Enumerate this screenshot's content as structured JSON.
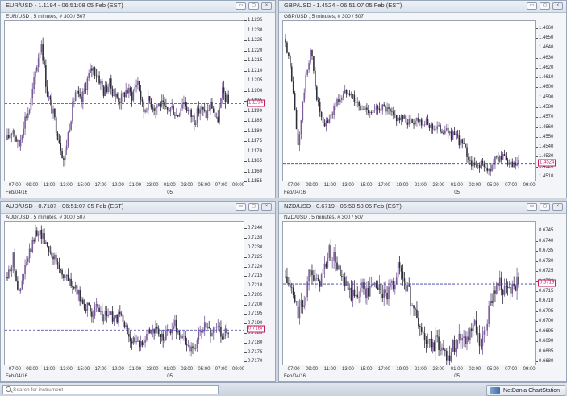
{
  "panels": [
    {
      "id": "eurusd",
      "title": "EUR/USD - 1.1194 - 06:51:08  05 Feb (EST)",
      "subtitle": "EUR/USD , 5 minutes, # 300 / 507",
      "last_price": "1.1194",
      "date_label": "Feb/04/16",
      "day_label": "05",
      "chart_data": {
        "type": "candlestick",
        "y_ticks": [
          "1.1235",
          "1.1230",
          "1.1225",
          "1.1220",
          "1.1215",
          "1.1210",
          "1.1205",
          "1.1200",
          "1.1195",
          "1.1190",
          "1.1185",
          "1.1180",
          "1.1175",
          "1.1170",
          "1.1165",
          "1.1160",
          "1.1155"
        ],
        "ylim": [
          1.1155,
          1.1235
        ],
        "x_ticks": [
          "07:00",
          "09:00",
          "11:00",
          "13:00",
          "15:00",
          "17:00",
          "19:00",
          "21:00",
          "23:00",
          "01:00",
          "03:00",
          "05:00",
          "07:00",
          "09:00"
        ],
        "last_value": 1.1194,
        "path_values": [
          1.1176,
          1.1182,
          1.1172,
          1.1186,
          1.1192,
          1.121,
          1.1225,
          1.12,
          1.119,
          1.1178,
          1.1166,
          1.1184,
          1.12,
          1.1194,
          1.1205,
          1.1212,
          1.1208,
          1.12,
          1.1204,
          1.1198,
          1.1196,
          1.1201,
          1.1198,
          1.1206,
          1.119,
          1.1196,
          1.1192,
          1.1194,
          1.119,
          1.1192,
          1.1188,
          1.1196,
          1.119,
          1.1186,
          1.1192,
          1.1188,
          1.1194,
          1.1184,
          1.12,
          1.1194
        ],
        "vol": 0.0006
      }
    },
    {
      "id": "gbpusd",
      "title": "GBP/USD - 1.4524 - 06:51:07  05 Feb (EST)",
      "subtitle": "GBP/USD , 5 minutes, # 300 / 507",
      "last_price": "1.4524",
      "date_label": "Feb/04/16",
      "day_label": "05",
      "chart_data": {
        "type": "candlestick",
        "y_ticks": [
          "1.4660",
          "1.4650",
          "1.4640",
          "1.4630",
          "1.4620",
          "1.4610",
          "1.4600",
          "1.4590",
          "1.4580",
          "1.4570",
          "1.4560",
          "1.4550",
          "1.4540",
          "1.4530",
          "1.4520",
          "1.4510"
        ],
        "ylim": [
          1.4505,
          1.4668
        ],
        "x_ticks": [
          "07:00",
          "09:00",
          "11:00",
          "13:00",
          "15:00",
          "17:00",
          "19:00",
          "21:00",
          "23:00",
          "01:00",
          "03:00",
          "05:00",
          "07:00",
          "09:00"
        ],
        "last_value": 1.4524,
        "path_values": [
          1.465,
          1.461,
          1.454,
          1.46,
          1.464,
          1.459,
          1.456,
          1.457,
          1.4585,
          1.4592,
          1.46,
          1.4588,
          1.4578,
          1.458,
          1.4575,
          1.4582,
          1.4578,
          1.4572,
          1.457,
          1.4568,
          1.4566,
          1.457,
          1.4565,
          1.4562,
          1.456,
          1.4558,
          1.4555,
          1.455,
          1.4545,
          1.453,
          1.452,
          1.4525,
          1.4515,
          1.4525,
          1.4532,
          1.4526,
          1.452,
          1.4524
        ],
        "vol": 0.001
      }
    },
    {
      "id": "audusd",
      "title": "AUD/USD - 0.7187 - 06:51:07  05 Feb (EST)",
      "subtitle": "AUD/USD , 5 minutes, # 300 / 507",
      "last_price": "0.7187",
      "date_label": "Feb/04/16",
      "day_label": "05",
      "chart_data": {
        "type": "candlestick",
        "y_ticks": [
          "0.7240",
          "0.7235",
          "0.7230",
          "0.7225",
          "0.7220",
          "0.7215",
          "0.7210",
          "0.7205",
          "0.7200",
          "0.7195",
          "0.7190",
          "0.7185",
          "0.7180",
          "0.7175",
          "0.7170"
        ],
        "ylim": [
          0.7168,
          0.7244
        ],
        "x_ticks": [
          "07:00",
          "09:00",
          "11:00",
          "13:00",
          "15:00",
          "17:00",
          "19:00",
          "21:00",
          "23:00",
          "01:00",
          "03:00",
          "05:00",
          "07:00",
          "09:00"
        ],
        "last_value": 0.7187,
        "path_values": [
          0.7215,
          0.7225,
          0.7205,
          0.722,
          0.723,
          0.724,
          0.7236,
          0.723,
          0.7224,
          0.7218,
          0.7214,
          0.721,
          0.7205,
          0.72,
          0.7196,
          0.7198,
          0.7194,
          0.7196,
          0.7192,
          0.7195,
          0.7186,
          0.7182,
          0.7178,
          0.7184,
          0.7188,
          0.7186,
          0.7182,
          0.7186,
          0.719,
          0.7184,
          0.718,
          0.7176,
          0.7183,
          0.7189,
          0.7186,
          0.719,
          0.7185,
          0.7187
        ],
        "vol": 0.0006
      }
    },
    {
      "id": "nzdusd",
      "title": "NZD/USD - 0.6719 - 06:50:58  05 Feb (EST)",
      "subtitle": "NZD/USD , 5 minutes, # 300 / 507",
      "last_price": "0.6719",
      "date_label": "Feb/04/16",
      "day_label": "05",
      "chart_data": {
        "type": "candlestick",
        "y_ticks": [
          "0.6745",
          "0.6740",
          "0.6735",
          "0.6730",
          "0.6725",
          "0.6720",
          "0.6715",
          "0.6710",
          "0.6705",
          "0.6700",
          "0.6695",
          "0.6690",
          "0.6685",
          "0.6680"
        ],
        "ylim": [
          0.6678,
          0.675
        ],
        "x_ticks": [
          "07:00",
          "09:00",
          "11:00",
          "13:00",
          "15:00",
          "17:00",
          "19:00",
          "21:00",
          "23:00",
          "01:00",
          "03:00",
          "05:00",
          "07:00",
          "09:00"
        ],
        "last_value": 0.6719,
        "path_values": [
          0.6722,
          0.6715,
          0.6705,
          0.671,
          0.673,
          0.6718,
          0.6725,
          0.6735,
          0.673,
          0.672,
          0.6715,
          0.6712,
          0.6718,
          0.6714,
          0.672,
          0.6716,
          0.6712,
          0.6718,
          0.6728,
          0.672,
          0.671,
          0.67,
          0.6692,
          0.6688,
          0.669,
          0.6686,
          0.6684,
          0.669,
          0.6694,
          0.6692,
          0.6698,
          0.6686,
          0.67,
          0.6716,
          0.672,
          0.6714,
          0.6718,
          0.6719
        ],
        "vol": 0.0008
      }
    }
  ],
  "window_buttons": {
    "minimize": "▭",
    "restore": "◻",
    "close": "×"
  },
  "bottombar": {
    "search_placeholder": "Search for instrument",
    "brand": "NetDania ChartStation"
  },
  "colors": {
    "up": "#7a5b9a",
    "down": "#2e2e3a",
    "last_line": "#3a3aa0",
    "price_tag": "#c02060"
  }
}
